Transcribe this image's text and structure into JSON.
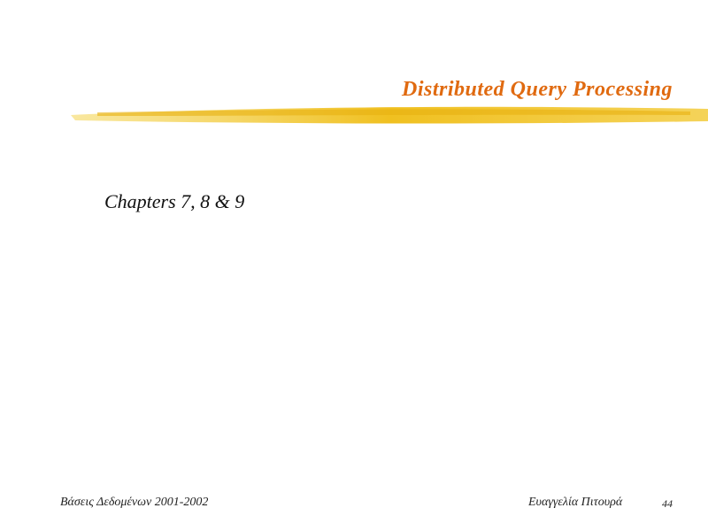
{
  "slide": {
    "title": "Distributed Query Processing",
    "body": "Chapters 7, 8 & 9",
    "footer": {
      "left": "Βάσεις Δεδομένων 2001-2002",
      "author": "Ευαγγελία  Πιτουρά",
      "page": "44"
    }
  }
}
